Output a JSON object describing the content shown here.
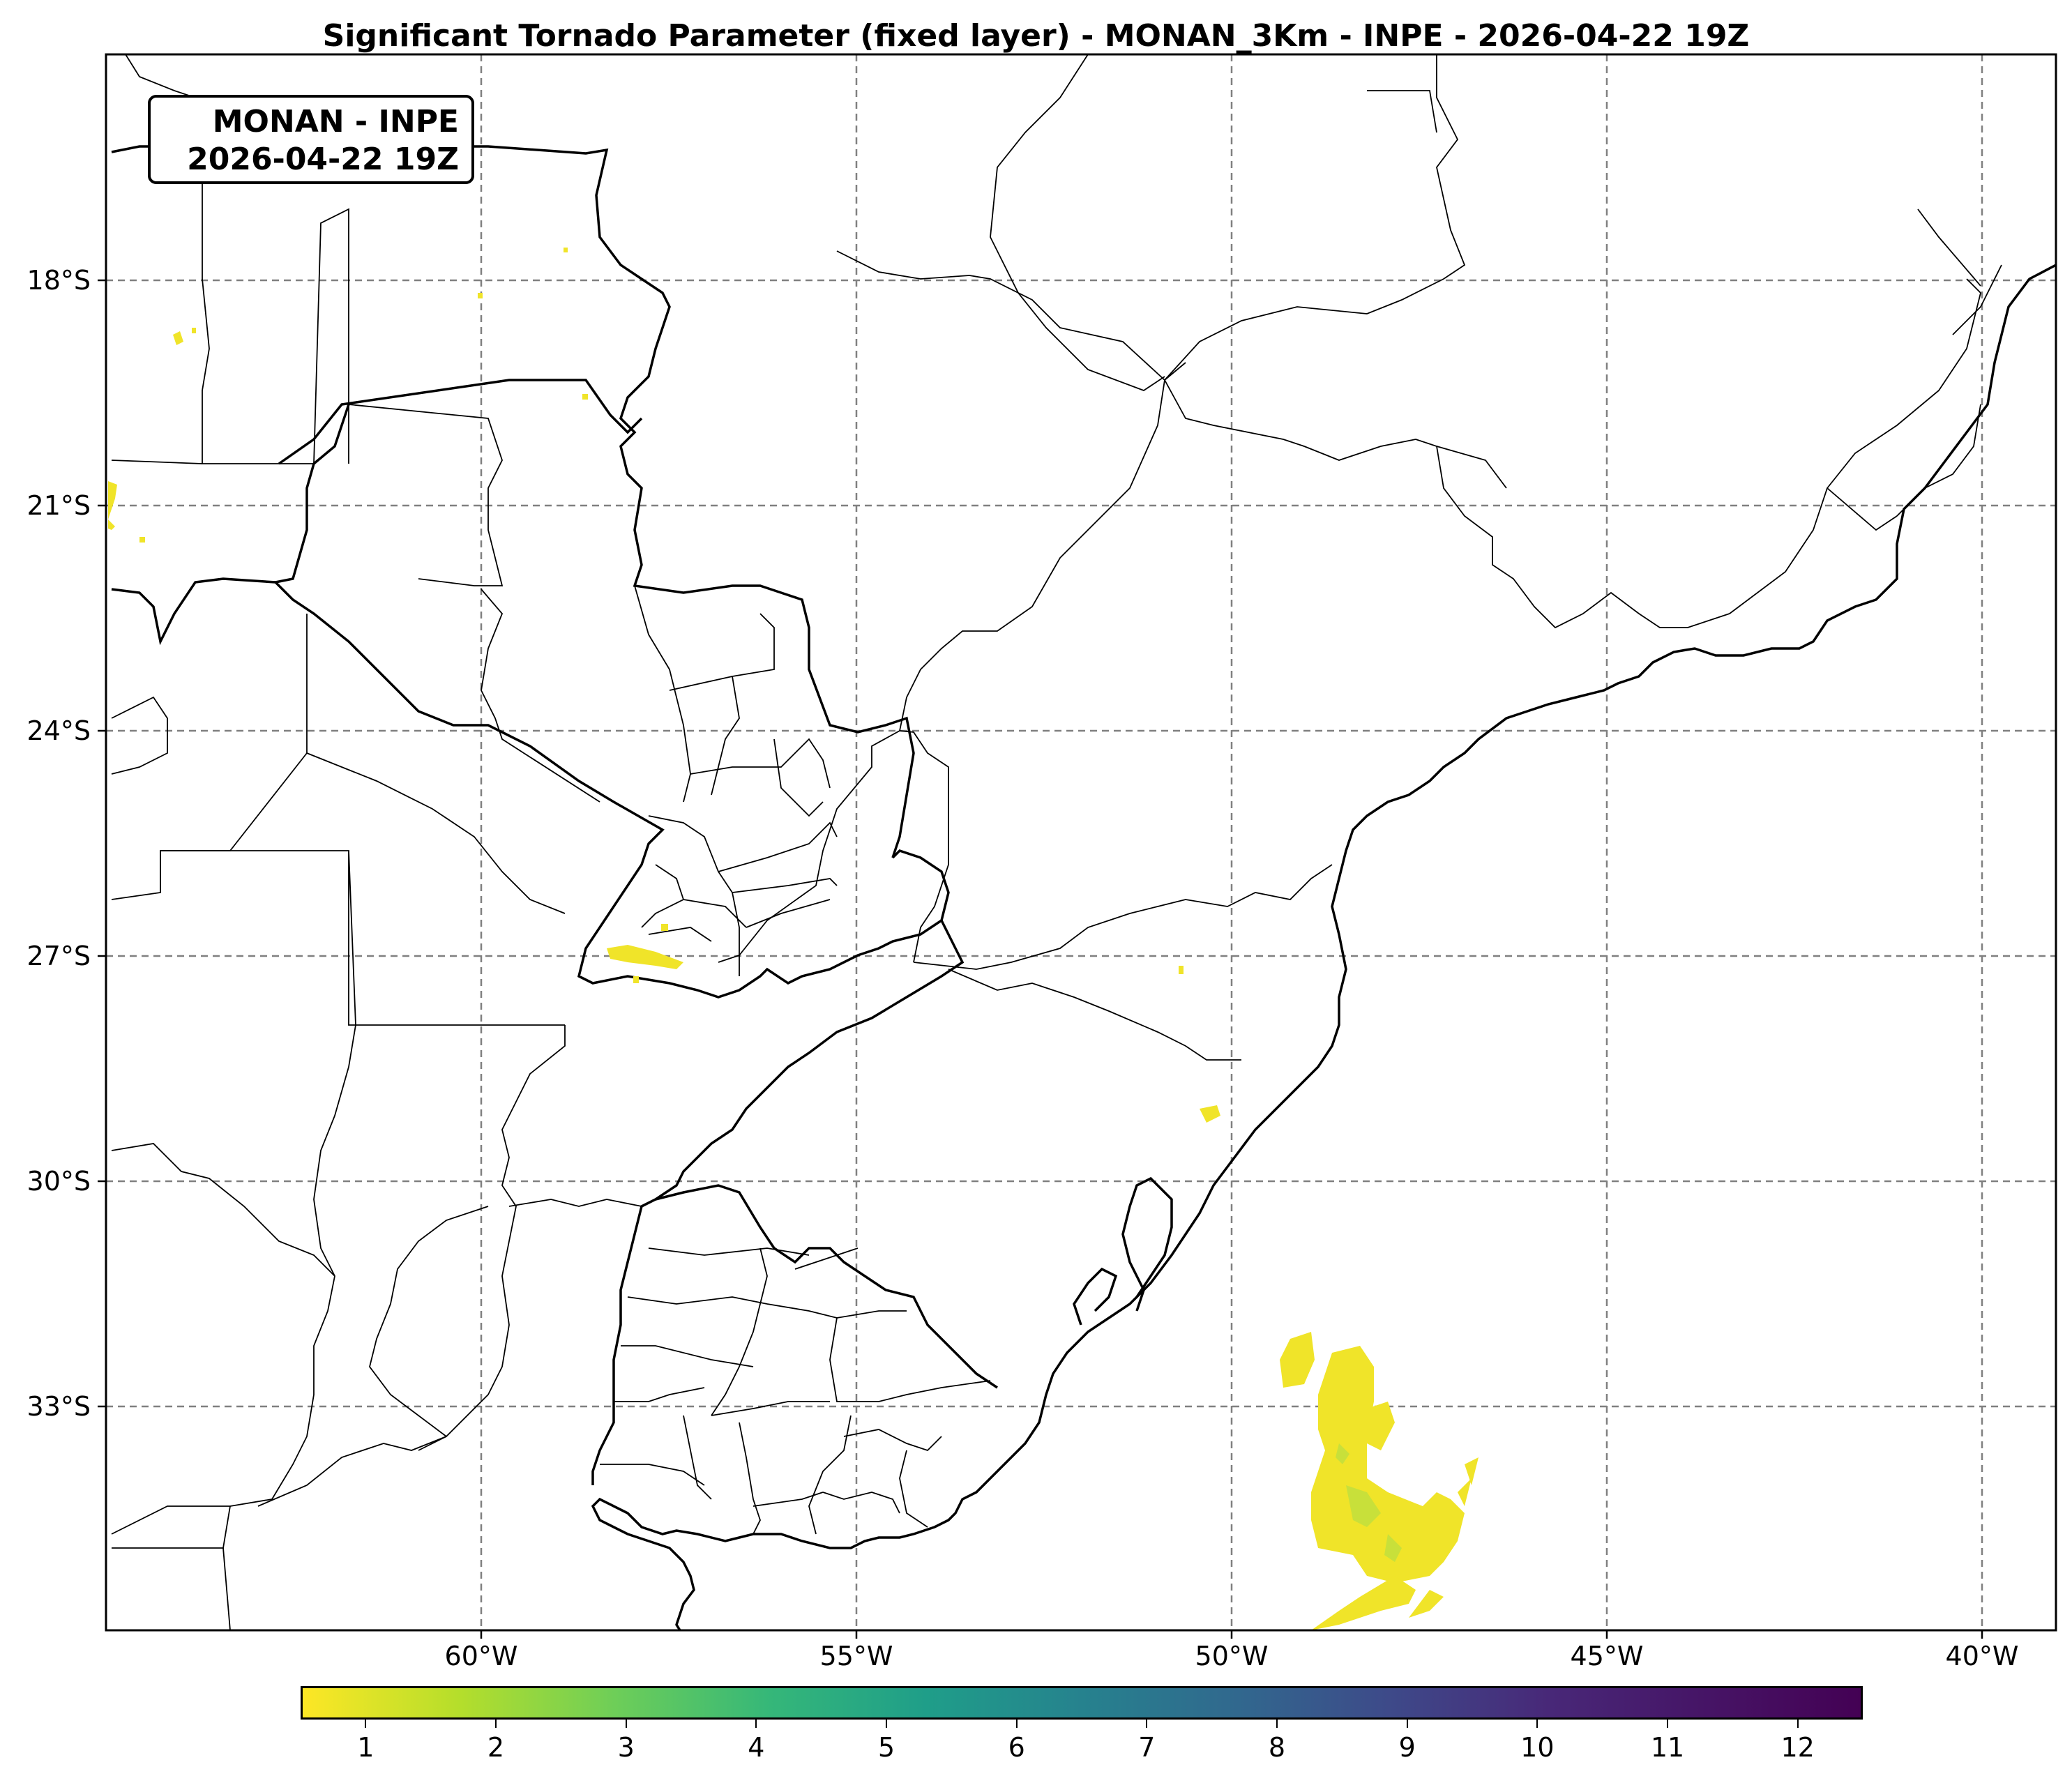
{
  "title": "Significant Tornado Parameter (fixed layer) - MONAN_3Km - INPE - 2026-04-22 19Z",
  "info_box": {
    "line1": "MONAN - INPE",
    "line2": "2026-04-22 19Z"
  },
  "axes": {
    "lat_labels": [
      "18°S",
      "21°S",
      "24°S",
      "27°S",
      "30°S",
      "33°S"
    ],
    "lon_labels": [
      "60°W",
      "55°W",
      "50°W",
      "45°W",
      "40°W"
    ]
  },
  "colorbar": {
    "ticks": [
      "1",
      "2",
      "3",
      "4",
      "5",
      "6",
      "7",
      "8",
      "9",
      "10",
      "11",
      "12"
    ],
    "colormap": "viridis_r",
    "color_low": "#fde725",
    "color_high": "#440154"
  },
  "colors": {
    "gridline": "#808080",
    "field_low": "#f0e429",
    "field_mid": "#c8e03a"
  }
}
